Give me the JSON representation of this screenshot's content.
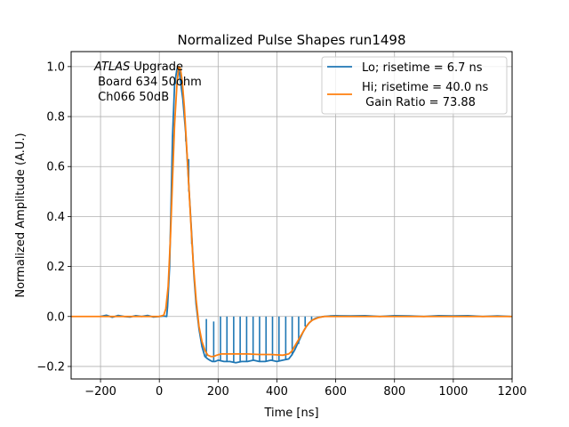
{
  "chart_data": {
    "type": "line",
    "title": "Normalized Pulse Shapes run1498",
    "xlabel": "Time [ns]",
    "ylabel": "Normalized Amplitude (A.U.)",
    "xlim": [
      -300,
      1200
    ],
    "ylim": [
      -0.25,
      1.06
    ],
    "xticks": [
      -200,
      0,
      200,
      400,
      600,
      800,
      1000,
      1200
    ],
    "xtick_labels": [
      "−200",
      "0",
      "200",
      "400",
      "600",
      "800",
      "1000",
      "1200"
    ],
    "yticks": [
      -0.2,
      0.0,
      0.2,
      0.4,
      0.6,
      0.8,
      1.0
    ],
    "ytick_labels": [
      "−0.2",
      "0.0",
      "0.2",
      "0.4",
      "0.6",
      "0.8",
      "1.0"
    ],
    "grid": true,
    "legend_position": "top-right",
    "annotation": {
      "line1_italic": "ATLAS",
      "line1_rest": " Upgrade",
      "line2": " Board 634 50ohm",
      "line3": " Ch066 50dB"
    },
    "series": [
      {
        "name": "Lo; risetime = 6.7 ns",
        "color": "#1f77b4",
        "x": [
          -200,
          -180,
          -160,
          -140,
          -120,
          -100,
          -80,
          -60,
          -40,
          -20,
          0,
          15,
          25,
          28,
          35,
          40,
          45,
          52,
          60,
          65,
          70,
          80,
          90,
          95,
          105,
          110,
          118,
          125,
          135,
          145,
          155,
          165,
          172,
          180,
          190,
          200,
          220,
          240,
          260,
          280,
          300,
          320,
          340,
          360,
          380,
          400,
          420,
          440,
          450,
          460,
          470,
          480,
          490,
          500,
          510,
          520,
          530,
          540,
          560,
          580,
          600,
          650,
          700,
          750,
          800,
          850,
          900,
          950,
          1000,
          1050,
          1100,
          1150,
          1195
        ],
        "y": [
          0.0,
          0.005,
          -0.003,
          0.004,
          0.0,
          -0.002,
          0.003,
          0.0,
          0.004,
          -0.002,
          0.0,
          0.002,
          0.0,
          0.04,
          0.2,
          0.45,
          0.72,
          0.93,
          0.99,
          1.0,
          0.96,
          0.87,
          0.73,
          0.63,
          0.43,
          0.33,
          0.16,
          0.05,
          -0.05,
          -0.12,
          -0.16,
          -0.17,
          -0.175,
          -0.18,
          -0.18,
          -0.175,
          -0.18,
          -0.18,
          -0.185,
          -0.18,
          -0.18,
          -0.175,
          -0.18,
          -0.18,
          -0.175,
          -0.18,
          -0.175,
          -0.17,
          -0.155,
          -0.135,
          -0.11,
          -0.085,
          -0.06,
          -0.04,
          -0.025,
          -0.015,
          -0.008,
          -0.004,
          0.0,
          0.002,
          0.003,
          0.002,
          0.003,
          0.0,
          0.003,
          0.002,
          0.0,
          0.003,
          0.002,
          0.003,
          0.0,
          0.002,
          0.0
        ],
        "spikes": [
          {
            "x": 45,
            "y": 0.72
          },
          {
            "x": 55,
            "y": 0.95
          },
          {
            "x": 62,
            "y": 0.99
          },
          {
            "x": 72,
            "y": 0.98
          },
          {
            "x": 82,
            "y": 0.85
          },
          {
            "x": 90,
            "y": 0.7
          },
          {
            "x": 100,
            "y": 0.5
          },
          {
            "x": 110,
            "y": 0.29
          },
          {
            "x": 160,
            "y": -0.01
          },
          {
            "x": 185,
            "y": -0.02
          },
          {
            "x": 208,
            "y": 0.0
          },
          {
            "x": 230,
            "y": 0.0
          },
          {
            "x": 253,
            "y": 0.0
          },
          {
            "x": 275,
            "y": 0.0
          },
          {
            "x": 297,
            "y": 0.0
          },
          {
            "x": 319,
            "y": 0.0
          },
          {
            "x": 341,
            "y": 0.0
          },
          {
            "x": 363,
            "y": 0.0
          },
          {
            "x": 385,
            "y": 0.0
          },
          {
            "x": 407,
            "y": 0.0
          },
          {
            "x": 430,
            "y": 0.0
          },
          {
            "x": 452,
            "y": 0.0
          },
          {
            "x": 474,
            "y": 0.0
          },
          {
            "x": 496,
            "y": 0.0
          },
          {
            "x": 518,
            "y": 0.0
          }
        ]
      },
      {
        "name": "Hi; risetime = 40.0 ns",
        "name_line2": " Gain Ratio = 73.88",
        "color": "#ff7f0e",
        "x": [
          -300,
          -200,
          -100,
          0,
          15,
          22,
          30,
          38,
          45,
          52,
          60,
          66,
          72,
          78,
          85,
          92,
          100,
          108,
          115,
          125,
          135,
          145,
          155,
          165,
          175,
          185,
          195,
          210,
          230,
          260,
          300,
          340,
          380,
          420,
          440,
          450,
          460,
          470,
          480,
          490,
          500,
          510,
          520,
          540,
          560,
          600,
          700,
          800,
          900,
          1000,
          1100,
          1200
        ],
        "y": [
          0.0,
          0.0,
          0.0,
          0.0,
          0.005,
          0.03,
          0.12,
          0.32,
          0.55,
          0.77,
          0.93,
          1.0,
          0.99,
          0.94,
          0.84,
          0.7,
          0.53,
          0.36,
          0.22,
          0.07,
          -0.04,
          -0.1,
          -0.135,
          -0.155,
          -0.16,
          -0.16,
          -0.155,
          -0.15,
          -0.15,
          -0.15,
          -0.15,
          -0.152,
          -0.152,
          -0.155,
          -0.15,
          -0.14,
          -0.12,
          -0.1,
          -0.08,
          -0.06,
          -0.04,
          -0.025,
          -0.015,
          -0.005,
          0.0,
          0.0,
          0.0,
          0.0,
          0.0,
          0.0,
          0.0,
          0.0
        ]
      }
    ]
  }
}
